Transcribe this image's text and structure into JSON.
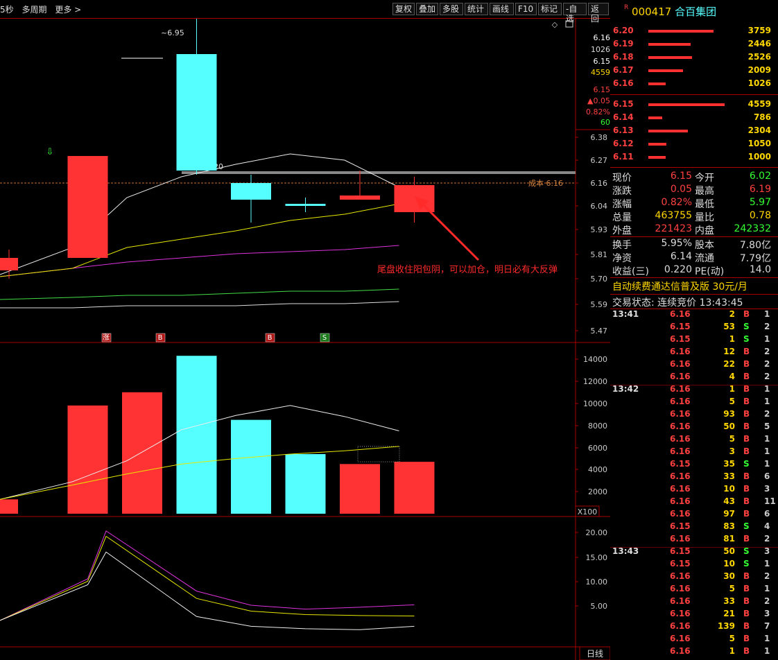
{
  "toolbar": {
    "left": [
      "5秒",
      "多周期",
      "更多 >"
    ],
    "buttons": [
      "复权",
      "叠加",
      "多股",
      "统计",
      "画线",
      "F10",
      "标记",
      "-自选",
      "返回"
    ]
  },
  "price_axis": {
    "ticks": [
      "6.38",
      "6.27",
      "6.16",
      "6.04",
      "5.93",
      "5.81",
      "5.70",
      "5.59",
      "5.47"
    ],
    "top_box": {
      "p1": "6.16",
      "v1": "1026",
      "p2": "6.15",
      "v2": "4559",
      "p3": "6.15",
      "chg": "▲0.05",
      "pct": "0.82%",
      "n": "60"
    }
  },
  "volume_axis": {
    "ticks": [
      "14000",
      "12000",
      "10000",
      "8000",
      "6000",
      "4000",
      "2000"
    ],
    "unit": "X100"
  },
  "indicator_axis": {
    "ticks": [
      "20.00",
      "15.00",
      "10.00",
      "5.00"
    ]
  },
  "annotations": {
    "high_label": "6.95",
    "range_label": "6.22 - 6.20",
    "cost_label": "成本 6.16",
    "comment": "尾盘收住阳包阴，可以加仓，明日必有大反弹",
    "markers": [
      "涨",
      "B",
      "B",
      "S"
    ],
    "period_tab": "日线"
  },
  "colors": {
    "up": "#ff3333",
    "down": "#55ffff",
    "bg": "#000000",
    "grid": "#aa0000",
    "accent": "#ff2a2a"
  },
  "chart_data": {
    "type": "candlestick",
    "candles": [
      {
        "open": 5.74,
        "close": 5.8,
        "high": 5.84,
        "low": 5.7
      },
      {
        "open": 5.8,
        "close": 6.29,
        "high": 6.29,
        "low": 5.8
      },
      {
        "open": 6.76,
        "close": 6.76,
        "high": 6.76,
        "low": 6.76
      },
      {
        "open": 6.78,
        "close": 6.22,
        "high": 6.95,
        "low": 6.2
      },
      {
        "open": 6.16,
        "close": 6.08,
        "high": 6.2,
        "low": 5.97
      },
      {
        "open": 6.06,
        "close": 6.05,
        "high": 6.09,
        "low": 6.02
      },
      {
        "open": 6.08,
        "close": 6.1,
        "high": 6.22,
        "low": 6.08
      },
      {
        "open": 6.02,
        "close": 6.15,
        "high": 6.19,
        "low": 5.97
      }
    ],
    "ma_white": [
      5.72,
      5.85,
      6.09,
      6.19,
      6.25,
      6.3,
      6.27,
      6.14
    ],
    "ma_yellow": [
      5.71,
      5.75,
      5.85,
      5.89,
      5.93,
      5.98,
      6.01,
      6.06
    ],
    "ma_magenta": [
      5.71,
      5.75,
      5.78,
      5.8,
      5.82,
      5.83,
      5.84,
      5.86
    ],
    "ma_green": [
      5.6,
      5.61,
      5.62,
      5.62,
      5.63,
      5.64,
      5.64,
      5.65
    ],
    "ma_grey": [
      5.56,
      5.56,
      5.57,
      5.57,
      5.57,
      5.58,
      5.58,
      5.59
    ],
    "cost_level": 6.16,
    "resistance_level": 6.21,
    "volume": {
      "values": [
        1300,
        9800,
        11000,
        14300,
        8500,
        5400,
        4500,
        4700
      ],
      "up": [
        true,
        true,
        true,
        false,
        false,
        false,
        true,
        true
      ],
      "ma_white": [
        1300,
        2900,
        4800,
        7600,
        8900,
        9800,
        8800,
        7500
      ],
      "ma_yellow": [
        1300,
        2600,
        3600,
        4500,
        5000,
        5400,
        5700,
        6100
      ]
    },
    "indicator": {
      "purple": [
        2.0,
        10.5,
        20.3,
        8.0,
        5.1,
        4.3,
        4.7,
        5.2
      ],
      "yellow": [
        2.0,
        10.0,
        19.2,
        6.5,
        3.9,
        3.2,
        3.0,
        2.9
      ],
      "white": [
        2.0,
        9.3,
        16.0,
        2.8,
        0.8,
        0.3,
        0.1,
        0.8
      ]
    },
    "ylim_price": [
      5.47,
      6.95
    ],
    "ylim_volume": [
      0,
      14300
    ],
    "ylim_indicator": [
      0,
      22
    ]
  },
  "stock": {
    "r": "R",
    "code": "000417",
    "name": "合百集团"
  },
  "asks": [
    {
      "price": "6.20",
      "vol": "3759",
      "frac": 0.85
    },
    {
      "price": "6.19",
      "vol": "2446",
      "frac": 0.55
    },
    {
      "price": "6.18",
      "vol": "2526",
      "frac": 0.57
    },
    {
      "price": "6.17",
      "vol": "2009",
      "frac": 0.45
    },
    {
      "price": "6.16",
      "vol": "1026",
      "frac": 0.23
    }
  ],
  "bids": [
    {
      "price": "6.15",
      "vol": "4559",
      "frac": 1.0
    },
    {
      "price": "6.14",
      "vol": "786",
      "frac": 0.18
    },
    {
      "price": "6.13",
      "vol": "2304",
      "frac": 0.52
    },
    {
      "price": "6.12",
      "vol": "1050",
      "frac": 0.24
    },
    {
      "price": "6.11",
      "vol": "1000",
      "frac": 0.23
    }
  ],
  "quote": [
    {
      "l1": "现价",
      "v1": "6.15",
      "c1": "red",
      "l2": "今开",
      "v2": "6.02",
      "c2": "green"
    },
    {
      "l1": "涨跌",
      "v1": "0.05",
      "c1": "red",
      "l2": "最高",
      "v2": "6.19",
      "c2": "red"
    },
    {
      "l1": "涨幅",
      "v1": "0.82%",
      "c1": "red",
      "l2": "最低",
      "v2": "5.97",
      "c2": "green"
    },
    {
      "l1": "总量",
      "v1": "463755",
      "c1": "yel",
      "l2": "量比",
      "v2": "0.78",
      "c2": "yel"
    },
    {
      "l1": "外盘",
      "v1": "221423",
      "c1": "red",
      "l2": "内盘",
      "v2": "242332",
      "c2": "green"
    }
  ],
  "finance": [
    {
      "l1": "换手",
      "v1": "5.95%",
      "l2": "股本",
      "v2": "7.80亿"
    },
    {
      "l1": "净资",
      "v1": "6.14",
      "l2": "流通",
      "v2": "7.79亿"
    },
    {
      "l1": "收益(三)",
      "v1": "0.220",
      "l2": "PE(动)",
      "v2": "14.0"
    }
  ],
  "promo": {
    "text": "自动续费通达信普及版",
    "price": "30元/月"
  },
  "trade_status": {
    "label": "交易状态: 连续竞价",
    "time": "13:43:45"
  },
  "ticks": [
    {
      "time": "13:41",
      "price": "6.16",
      "vol": "2",
      "bs": "B",
      "n": "1"
    },
    {
      "time": "",
      "price": "6.15",
      "vol": "53",
      "bs": "S",
      "n": "2"
    },
    {
      "time": "",
      "price": "6.15",
      "vol": "1",
      "bs": "S",
      "n": "1"
    },
    {
      "time": "",
      "price": "6.16",
      "vol": "12",
      "bs": "B",
      "n": "2"
    },
    {
      "time": "",
      "price": "6.16",
      "vol": "22",
      "bs": "B",
      "n": "2"
    },
    {
      "time": "",
      "price": "6.16",
      "vol": "4",
      "bs": "B",
      "n": "2"
    },
    {
      "time": "13:42",
      "price": "6.16",
      "vol": "1",
      "bs": "B",
      "n": "1"
    },
    {
      "time": "",
      "price": "6.16",
      "vol": "5",
      "bs": "B",
      "n": "1"
    },
    {
      "time": "",
      "price": "6.16",
      "vol": "93",
      "bs": "B",
      "n": "2"
    },
    {
      "time": "",
      "price": "6.16",
      "vol": "50",
      "bs": "B",
      "n": "5"
    },
    {
      "time": "",
      "price": "6.16",
      "vol": "5",
      "bs": "B",
      "n": "1"
    },
    {
      "time": "",
      "price": "6.16",
      "vol": "3",
      "bs": "B",
      "n": "1"
    },
    {
      "time": "",
      "price": "6.15",
      "vol": "35",
      "bs": "S",
      "n": "1"
    },
    {
      "time": "",
      "price": "6.16",
      "vol": "33",
      "bs": "B",
      "n": "6"
    },
    {
      "time": "",
      "price": "6.16",
      "vol": "10",
      "bs": "B",
      "n": "3"
    },
    {
      "time": "",
      "price": "6.16",
      "vol": "43",
      "bs": "B",
      "n": "11"
    },
    {
      "time": "",
      "price": "6.16",
      "vol": "97",
      "bs": "B",
      "n": "6"
    },
    {
      "time": "",
      "price": "6.15",
      "vol": "83",
      "bs": "S",
      "n": "4"
    },
    {
      "time": "",
      "price": "6.16",
      "vol": "81",
      "bs": "B",
      "n": "2"
    },
    {
      "time": "13:43",
      "price": "6.15",
      "vol": "50",
      "bs": "S",
      "n": "3"
    },
    {
      "time": "",
      "price": "6.15",
      "vol": "10",
      "bs": "S",
      "n": "1"
    },
    {
      "time": "",
      "price": "6.16",
      "vol": "30",
      "bs": "B",
      "n": "2"
    },
    {
      "time": "",
      "price": "6.16",
      "vol": "5",
      "bs": "B",
      "n": "1"
    },
    {
      "time": "",
      "price": "6.16",
      "vol": "33",
      "bs": "B",
      "n": "2"
    },
    {
      "time": "",
      "price": "6.16",
      "vol": "21",
      "bs": "B",
      "n": "3"
    },
    {
      "time": "",
      "price": "6.16",
      "vol": "139",
      "bs": "B",
      "n": "7"
    },
    {
      "time": "",
      "price": "6.16",
      "vol": "5",
      "bs": "B",
      "n": "1"
    },
    {
      "time": "",
      "price": "6.16",
      "vol": "1",
      "bs": "B",
      "n": "1"
    }
  ]
}
